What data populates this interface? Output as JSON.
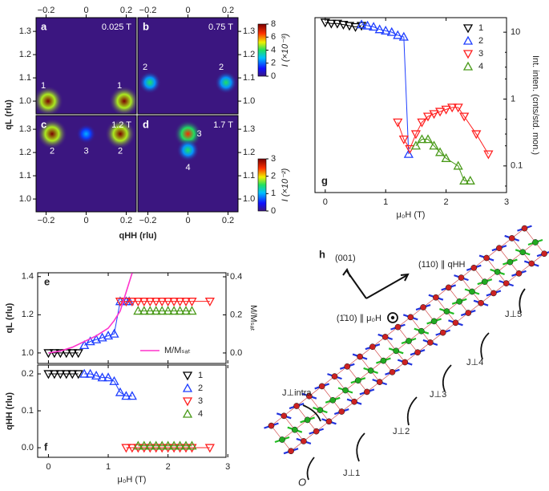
{
  "chart_data": [
    {
      "type": "heatmap",
      "xlabel": "qHH (rlu)",
      "ylabel": "qL (rlu)",
      "xlim": [
        -0.25,
        0.25
      ],
      "ylim": [
        0.945,
        1.359
      ],
      "xticks": [
        {
          "value": -0.2,
          "label": "−0.2"
        },
        0,
        0.2
      ],
      "yticks": [
        {
          "value": 1,
          "label": "1.0"
        },
        1.1,
        1.2,
        1.3
      ],
      "background": "#3b1680",
      "panels": [
        {
          "label": "a",
          "field": "0.025 T",
          "peaks": [
            {
              "x": -0.19,
              "y": 1.0,
              "value": 8,
              "label": "1"
            },
            {
              "x": 0.19,
              "y": 1.0,
              "value": 8,
              "label": "1"
            }
          ]
        },
        {
          "label": "b",
          "field": "0.75 T",
          "peaks": [
            {
              "x": -0.19,
              "y": 1.08,
              "value": 4,
              "label": "2"
            },
            {
              "x": 0.19,
              "y": 1.08,
              "value": 4,
              "label": "2"
            }
          ]
        },
        {
          "label": "c",
          "field": "1.2 T",
          "peaks": [
            {
              "x": -0.17,
              "y": 1.28,
              "value": 3,
              "label": "2"
            },
            {
              "x": 0.0,
              "y": 1.28,
              "value": 1,
              "label": "3"
            },
            {
              "x": 0.17,
              "y": 1.28,
              "value": 3,
              "label": "2"
            }
          ]
        },
        {
          "label": "d",
          "field": "1.7 T",
          "peaks": [
            {
              "x": 0.0,
              "y": 1.28,
              "value": 2.5,
              "label": "3"
            },
            {
              "x": 0.0,
              "y": 1.21,
              "value": 1.5,
              "label": "4"
            }
          ]
        }
      ],
      "colorbars": [
        {
          "label": "I (×10⁻³)",
          "clim": [
            0,
            8
          ],
          "ticks": [
            0,
            2,
            4,
            6,
            8
          ]
        },
        {
          "label": "I (×10⁻²)",
          "clim": [
            0,
            3
          ],
          "ticks": [
            0,
            1,
            2,
            3
          ]
        }
      ]
    },
    {
      "type": "line",
      "label": "g",
      "xlabel": "μ₀H (T)",
      "ylabel": "Int. inten. (cnts/std. mon.)",
      "ylog": true,
      "xlim": [
        -0.17,
        3.0
      ],
      "ylim": [
        0.04,
        16.5
      ],
      "xticks": [
        0,
        1,
        2,
        3
      ],
      "yticks": [
        10,
        1,
        0.1
      ],
      "legend": "upper right",
      "series": [
        {
          "name": "1",
          "color": "#000000",
          "marker": "down",
          "x": [
            0,
            0.1,
            0.2,
            0.3,
            0.4,
            0.5,
            0.6
          ],
          "values": [
            14,
            13.5,
            13.5,
            13,
            12.5,
            12,
            12.5
          ]
        },
        {
          "name": "2",
          "color": "#1f3fff",
          "marker": "up",
          "x": [
            0.6,
            0.7,
            0.8,
            0.9,
            1.0,
            1.1,
            1.2,
            1.3,
            1.38
          ],
          "values": [
            13,
            12.5,
            12,
            11,
            10.5,
            10,
            9,
            8.5,
            0.15
          ]
        },
        {
          "name": "3",
          "color": "#ff2020",
          "marker": "down",
          "x": [
            1.2,
            1.3,
            1.4,
            1.5,
            1.6,
            1.7,
            1.8,
            1.9,
            2.0,
            2.1,
            2.2,
            2.3,
            2.5,
            2.7
          ],
          "values": [
            0.45,
            0.25,
            0.18,
            0.3,
            0.45,
            0.55,
            0.6,
            0.65,
            0.7,
            0.75,
            0.75,
            0.55,
            0.3,
            0.15
          ]
        },
        {
          "name": "4",
          "color": "#4a9a1a",
          "marker": "up",
          "x": [
            1.5,
            1.6,
            1.7,
            1.8,
            1.9,
            2.0,
            2.2,
            2.3,
            2.4
          ],
          "values": [
            0.2,
            0.25,
            0.25,
            0.2,
            0.16,
            0.13,
            0.1,
            0.06,
            0.06
          ]
        }
      ]
    },
    {
      "type": "line",
      "label": "e",
      "ylabel": "qL (rlu)",
      "y2label": "M/Mₛₐₜ",
      "xlim": [
        -0.18,
        2.97
      ],
      "ylim": [
        0.945,
        1.42
      ],
      "yticks": [
        {
          "value": 1,
          "label": "1.0"
        },
        1.2,
        1.4
      ],
      "y2lim": [
        -0.055,
        0.421
      ],
      "y2ticks": [
        {
          "value": 0,
          "label": "0.0"
        },
        0.2,
        0.4
      ],
      "legend": "lower right",
      "series": [
        {
          "color": "#000000",
          "marker": "down",
          "x": [
            0,
            0.1,
            0.2,
            0.3,
            0.4,
            0.5
          ],
          "values": [
            1,
            1,
            1,
            1,
            1,
            1
          ]
        },
        {
          "color": "#1f3fff",
          "marker": "up",
          "x": [
            0.6,
            0.7,
            0.8,
            0.9,
            1.0,
            1.1,
            1.2,
            1.3,
            1.35
          ],
          "values": [
            1.04,
            1.06,
            1.07,
            1.08,
            1.09,
            1.1,
            1.27,
            1.27,
            1.27
          ]
        },
        {
          "color": "#ff2020",
          "marker": "down",
          "x": [
            1.2,
            1.3,
            1.4,
            1.5,
            1.6,
            1.7,
            1.8,
            1.9,
            2.0,
            2.1,
            2.2,
            2.3,
            2.4,
            2.7
          ],
          "values": [
            1.27,
            1.27,
            1.27,
            1.27,
            1.27,
            1.27,
            1.27,
            1.27,
            1.27,
            1.27,
            1.27,
            1.27,
            1.27,
            1.27
          ]
        },
        {
          "color": "#4a9a1a",
          "marker": "up",
          "x": [
            1.5,
            1.6,
            1.7,
            1.8,
            1.9,
            2.0,
            2.1,
            2.2,
            2.3,
            2.4
          ],
          "values": [
            1.22,
            1.22,
            1.22,
            1.22,
            1.22,
            1.22,
            1.22,
            1.22,
            1.22,
            1.22
          ]
        },
        {
          "name": "M/Mₛₐₜ",
          "color": "#ff33cc",
          "axis": "y2",
          "x": [
            0,
            0.2,
            0.4,
            0.6,
            0.8,
            1.0,
            1.1,
            1.2,
            1.3,
            1.4
          ],
          "values": [
            0,
            0.01,
            0.03,
            0.06,
            0.09,
            0.13,
            0.17,
            0.22,
            0.32,
            0.42
          ]
        }
      ]
    },
    {
      "type": "line",
      "label": "f",
      "xlabel": "μ₀H (T)",
      "ylabel": "qHH (rlu)",
      "xlim": [
        -0.18,
        2.97
      ],
      "ylim": [
        -0.026,
        0.224
      ],
      "xticks": [
        0,
        1,
        2,
        3
      ],
      "yticks": [
        {
          "value": 0,
          "label": "0.0"
        },
        0.1,
        0.2
      ],
      "legend": "upper right",
      "series": [
        {
          "name": "1",
          "color": "#000000",
          "marker": "down",
          "x": [
            0,
            0.1,
            0.2,
            0.3,
            0.4,
            0.5
          ],
          "values": [
            0.2,
            0.2,
            0.2,
            0.2,
            0.2,
            0.2
          ]
        },
        {
          "name": "2",
          "color": "#1f3fff",
          "marker": "up",
          "x": [
            0.6,
            0.7,
            0.8,
            0.9,
            1.0,
            1.1,
            1.2,
            1.3,
            1.4
          ],
          "values": [
            0.2,
            0.2,
            0.195,
            0.19,
            0.19,
            0.18,
            0.15,
            0.14,
            0.14
          ]
        },
        {
          "name": "3",
          "color": "#ff2020",
          "marker": "down",
          "x": [
            1.3,
            1.4,
            1.5,
            1.6,
            1.7,
            1.8,
            1.9,
            2.0,
            2.1,
            2.2,
            2.3,
            2.4,
            2.7
          ],
          "values": [
            0,
            0,
            0,
            0,
            0,
            0,
            0,
            0,
            0,
            0,
            0,
            0,
            0
          ]
        },
        {
          "name": "4",
          "color": "#4a9a1a",
          "marker": "up",
          "x": [
            1.5,
            1.6,
            1.7,
            1.8,
            1.9,
            2.0,
            2.1,
            2.2,
            2.3,
            2.4
          ],
          "values": [
            0.005,
            0.005,
            0.005,
            0.005,
            0.005,
            0.005,
            0.005,
            0.005,
            0.005,
            0.005
          ]
        }
      ]
    }
  ],
  "diagram": {
    "label": "h",
    "axes": [
      "(001)",
      "(110) ∥ qHH",
      "(1̄10) ∥ μ₀H"
    ],
    "couplings": [
      "J⊥intra",
      "J⊥1",
      "J⊥2",
      "J⊥3",
      "J⊥4",
      "J⊥5"
    ],
    "origin": "O"
  }
}
